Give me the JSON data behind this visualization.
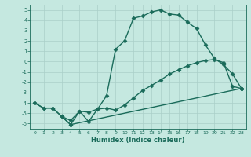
{
  "xlabel": "Humidex (Indice chaleur)",
  "xlim": [
    -0.5,
    23.5
  ],
  "ylim": [
    -6.5,
    5.5
  ],
  "yticks": [
    -6,
    -5,
    -4,
    -3,
    -2,
    -1,
    0,
    1,
    2,
    3,
    4,
    5
  ],
  "xticks": [
    0,
    1,
    2,
    3,
    4,
    5,
    6,
    7,
    8,
    9,
    10,
    11,
    12,
    13,
    14,
    15,
    16,
    17,
    18,
    19,
    20,
    21,
    22,
    23
  ],
  "bg_color": "#c5e8e0",
  "line_color": "#1a6b5a",
  "grid_color": "#aacfc8",
  "line1_x": [
    0,
    1,
    2,
    3,
    4,
    5,
    6,
    7,
    8,
    9,
    10,
    11,
    12,
    13,
    14,
    15,
    16,
    17,
    18,
    19,
    20,
    21,
    22,
    23
  ],
  "line1_y": [
    -4.0,
    -4.5,
    -4.5,
    -5.3,
    -6.1,
    -4.8,
    -4.9,
    -4.6,
    -3.3,
    1.2,
    2.0,
    4.2,
    4.4,
    4.8,
    5.0,
    4.6,
    4.5,
    3.8,
    3.2,
    1.6,
    0.3,
    -0.3,
    -1.2,
    -2.6
  ],
  "line2_x": [
    0,
    1,
    2,
    3,
    4,
    5,
    6,
    7,
    8,
    9,
    10,
    11,
    12,
    13,
    14,
    15,
    16,
    17,
    18,
    19,
    20,
    21,
    22,
    23
  ],
  "line2_y": [
    -4.0,
    -4.5,
    -4.5,
    -5.3,
    -5.7,
    -4.8,
    -5.8,
    -4.6,
    -4.5,
    -4.7,
    -4.2,
    -3.5,
    -2.8,
    -2.3,
    -1.8,
    -1.2,
    -0.8,
    -0.4,
    -0.1,
    0.1,
    0.2,
    -0.1,
    -2.4,
    -2.6
  ],
  "line3_x": [
    3,
    4,
    23
  ],
  "line3_y": [
    -5.3,
    -6.1,
    -2.6
  ],
  "marker": "D",
  "markersize": 2.5,
  "linewidth": 1.0
}
